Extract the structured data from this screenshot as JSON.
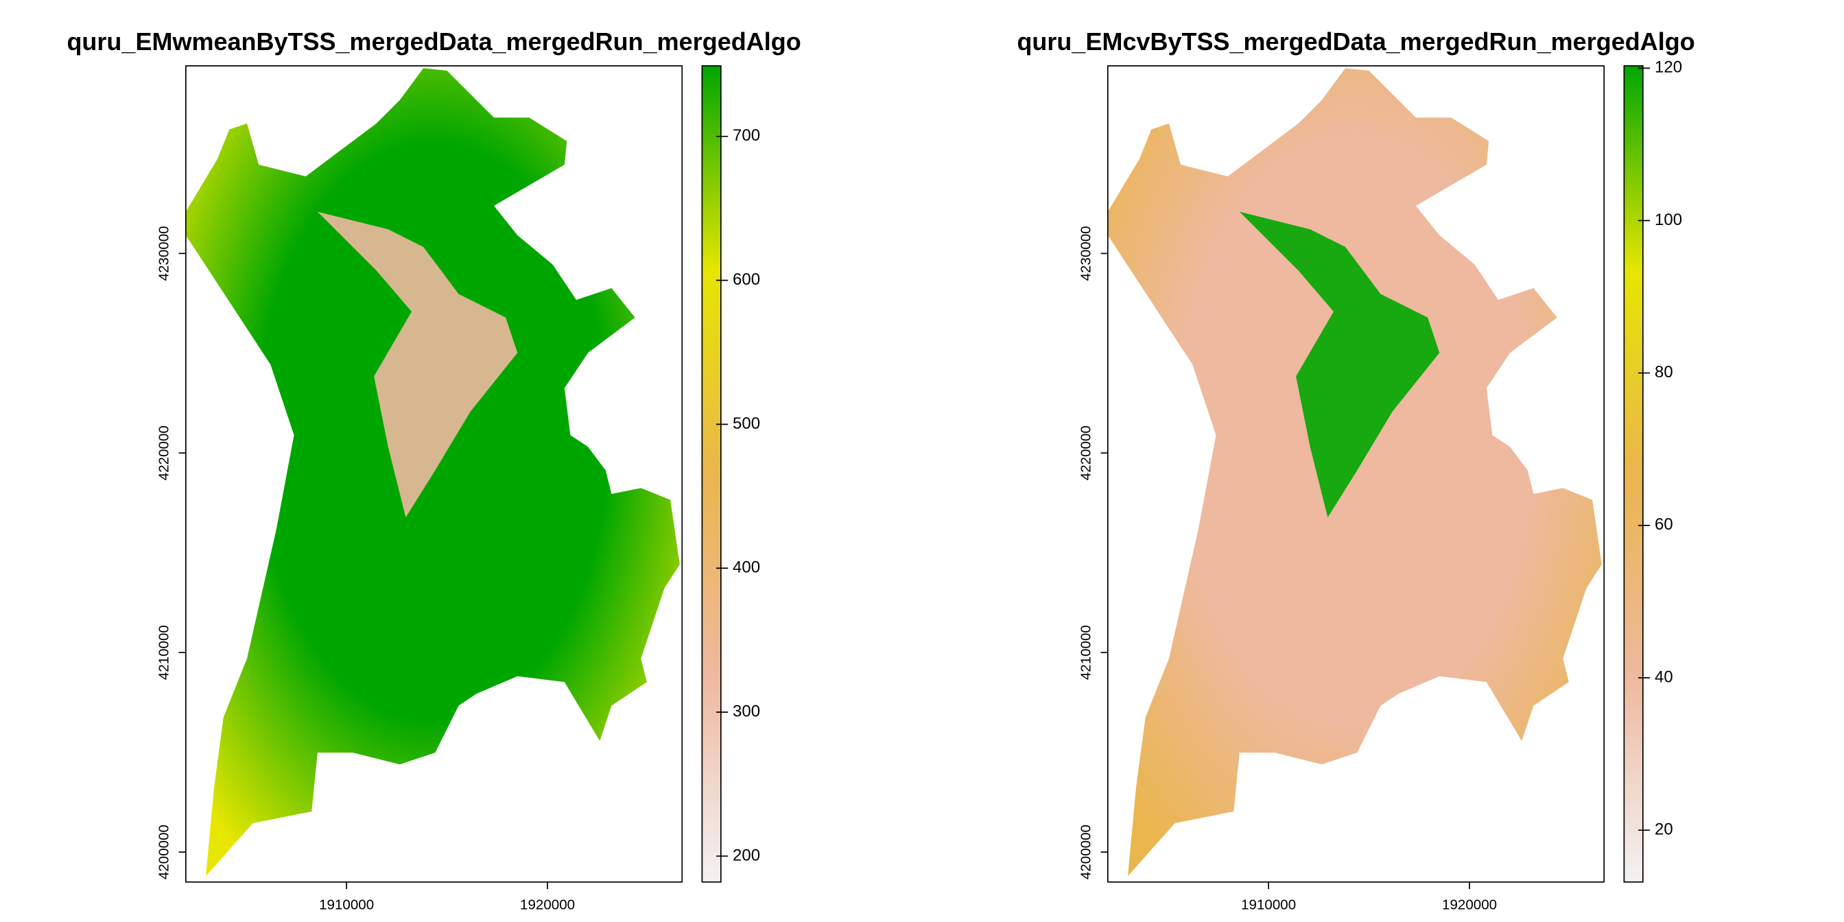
{
  "chart_data": [
    {
      "type": "raster",
      "title": "quru_EMwmeanByTSS_mergedData_mergedRun_mergedAlgo",
      "xlim": [
        1902000,
        1926700
      ],
      "ylim": [
        4198500,
        4239400
      ],
      "xticks": [
        1910000,
        1920000
      ],
      "yticks": [
        4200000,
        4210000,
        4220000,
        4230000
      ],
      "zlim": [
        182,
        749
      ],
      "zticks": [
        200,
        300,
        400,
        500,
        600,
        700
      ],
      "colors": [
        "#00A600",
        "#E6E600",
        "#EAB64E",
        "#EEB99F",
        "#F2F2F2"
      ]
    },
    {
      "type": "raster",
      "title": "quru_EMcvByTSS_mergedData_mergedRun_mergedAlgo",
      "xlim": [
        1902000,
        1926700
      ],
      "ylim": [
        4198500,
        4239400
      ],
      "xticks": [
        1910000,
        1920000
      ],
      "yticks": [
        4200000,
        4210000,
        4220000,
        4230000
      ],
      "zlim": [
        13.2,
        120.3
      ],
      "zticks": [
        20,
        40,
        60,
        80,
        100,
        120
      ],
      "colors": [
        "#00A600",
        "#E6E600",
        "#EAB64E",
        "#EEB99F",
        "#F2F2F2"
      ]
    }
  ]
}
